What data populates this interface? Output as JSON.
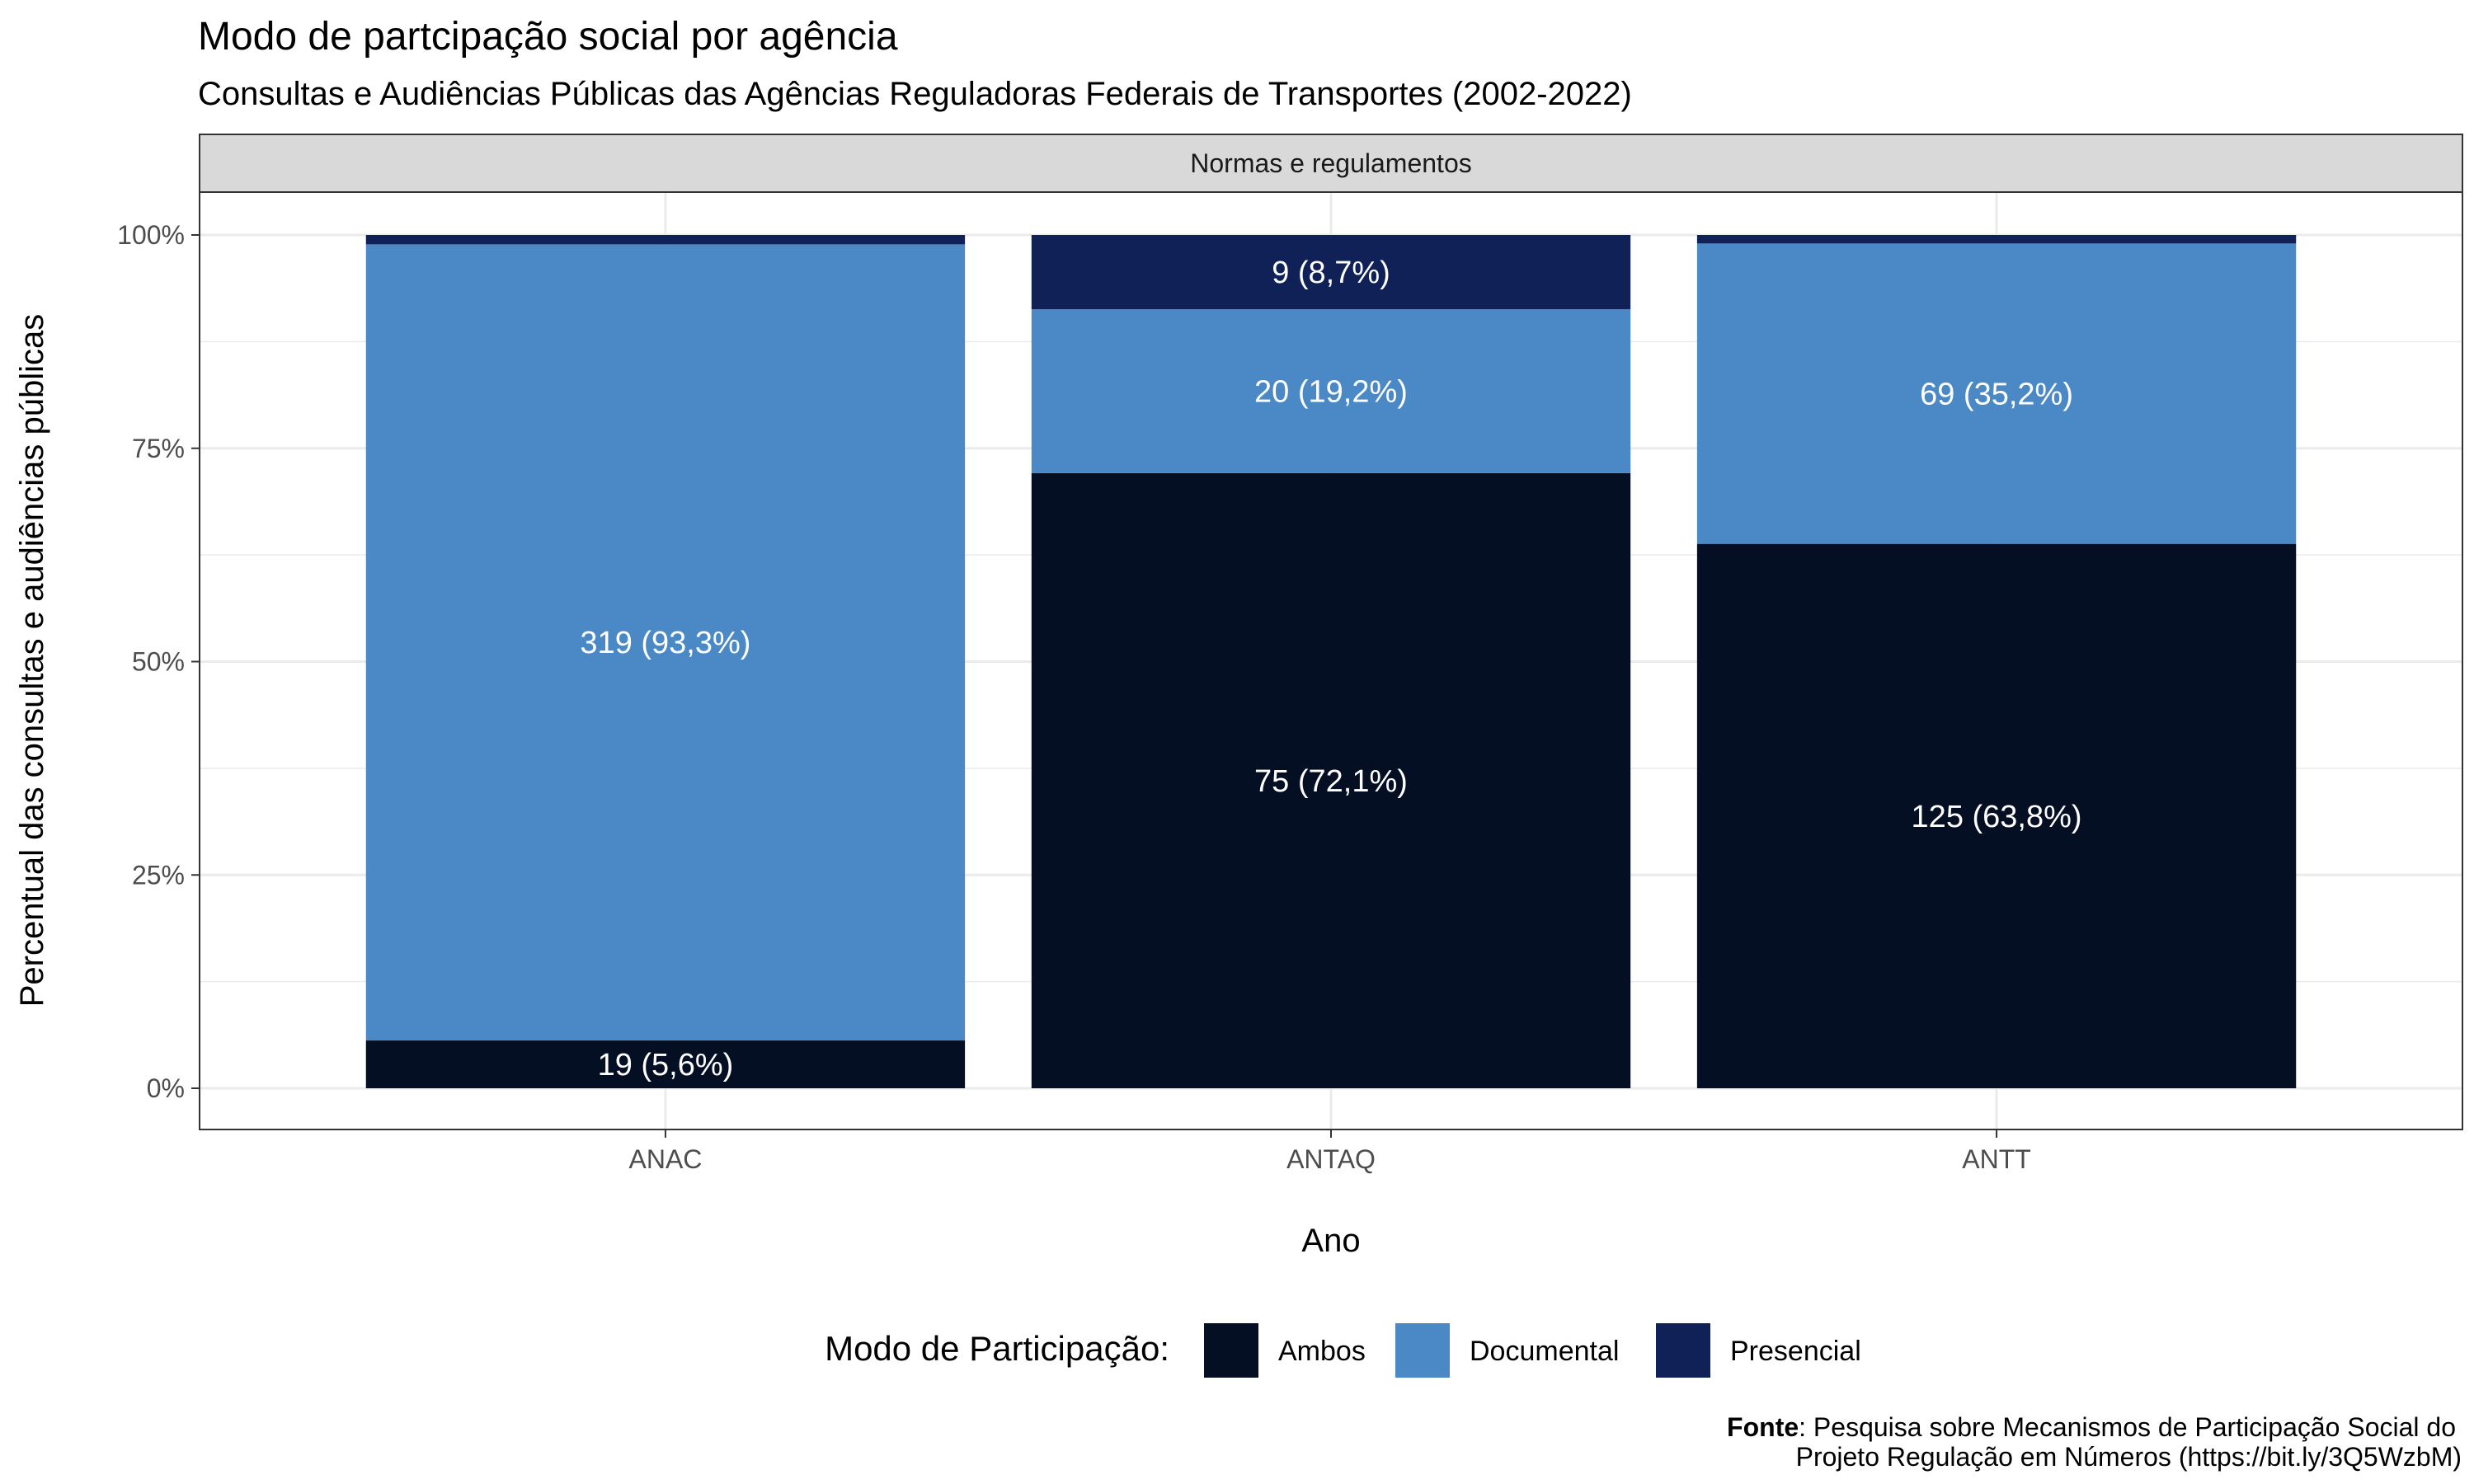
{
  "chart_data": {
    "type": "bar",
    "stacked": "percent",
    "title": "Modo de partcipação social por agência",
    "subtitle": "Consultas e Audiências Públicas das Agências Reguladoras Federais de Transportes (2002-2022)",
    "facet_label": "Normas e regulamentos",
    "xlabel": "Ano",
    "ylabel": "Percentual das consultas e audiências públicas",
    "categories": [
      "ANAC",
      "ANTAQ",
      "ANTT"
    ],
    "y_ticks": [
      "0%",
      "25%",
      "50%",
      "75%",
      "100%"
    ],
    "y_tick_values": [
      0,
      25,
      50,
      75,
      100
    ],
    "ylim": [
      0,
      100
    ],
    "grid": true,
    "legend_position": "bottom",
    "legend_title": "Modo de Participação:",
    "series": [
      {
        "name": "Ambos",
        "color": "#050f24",
        "percents": [
          5.6,
          72.1,
          63.8
        ],
        "labels": [
          "19 (5,6%)",
          "75 (72,1%)",
          "125 (63,8%)"
        ]
      },
      {
        "name": "Documental",
        "color": "#4a89c5",
        "percents": [
          93.3,
          19.2,
          35.2
        ],
        "labels": [
          "319 (93,3%)",
          "20 (19,2%)",
          "69 (35,2%)"
        ]
      },
      {
        "name": "Presencial",
        "color": "#0f2157",
        "percents": [
          1.1,
          8.7,
          1.0
        ],
        "labels": [
          "",
          "9 (8,7%)",
          ""
        ]
      }
    ],
    "caption": {
      "bold": "Fonte",
      "line1": ": Pesquisa sobre Mecanismos de Participação Social do",
      "line2": "Projeto Regulação em Números (https://bit.ly/3Q5WzbM)"
    }
  }
}
